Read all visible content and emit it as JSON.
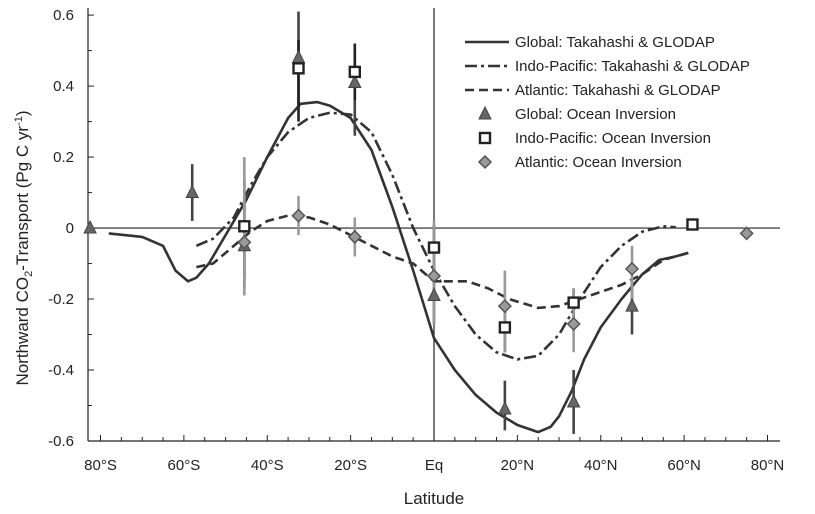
{
  "chart_data": {
    "type": "line",
    "xlabel": "Latitude",
    "ylabel_main": "Northward CO",
    "ylabel_sub": "2",
    "ylabel_rest": "-Transport (Pg C yr",
    "ylabel_sup": "-1",
    "ylabel_end": ")",
    "x_ticks": [
      {
        "value": -80,
        "label": "80°S"
      },
      {
        "value": -60,
        "label": "60°S"
      },
      {
        "value": -40,
        "label": "40°S"
      },
      {
        "value": -20,
        "label": "20°S"
      },
      {
        "value": 0,
        "label": "Eq"
      },
      {
        "value": 20,
        "label": "20°N"
      },
      {
        "value": 40,
        "label": "40°N"
      },
      {
        "value": 60,
        "label": "60°N"
      },
      {
        "value": 80,
        "label": "80°N"
      }
    ],
    "y_ticks": [
      {
        "value": 0.6,
        "label": "0.6"
      },
      {
        "value": 0.4,
        "label": "0.4"
      },
      {
        "value": 0.2,
        "label": "0.2"
      },
      {
        "value": 0,
        "label": "0"
      },
      {
        "value": -0.2,
        "label": "-0.2"
      },
      {
        "value": -0.4,
        "label": "-0.4"
      },
      {
        "value": -0.6,
        "label": "-0.6"
      }
    ],
    "xlim": [
      -83,
      83
    ],
    "ylim": [
      -0.6,
      0.62
    ],
    "grid": false,
    "legend_position": "top-right",
    "lines": [
      {
        "name": "Global: Takahashi & GLODAP",
        "style": "solid",
        "points": [
          [
            -78,
            -0.015
          ],
          [
            -70,
            -0.025
          ],
          [
            -65,
            -0.05
          ],
          [
            -62,
            -0.12
          ],
          [
            -59,
            -0.15
          ],
          [
            -57,
            -0.14
          ],
          [
            -54,
            -0.1
          ],
          [
            -50,
            -0.02
          ],
          [
            -45,
            0.08
          ],
          [
            -40,
            0.2
          ],
          [
            -35,
            0.31
          ],
          [
            -32,
            0.35
          ],
          [
            -28,
            0.355
          ],
          [
            -25,
            0.345
          ],
          [
            -20,
            0.31
          ],
          [
            -15,
            0.22
          ],
          [
            -10,
            0.06
          ],
          [
            -5,
            -0.12
          ],
          [
            0,
            -0.31
          ],
          [
            5,
            -0.4
          ],
          [
            10,
            -0.47
          ],
          [
            15,
            -0.52
          ],
          [
            20,
            -0.555
          ],
          [
            25,
            -0.575
          ],
          [
            28,
            -0.56
          ],
          [
            30,
            -0.53
          ],
          [
            33,
            -0.46
          ],
          [
            36,
            -0.37
          ],
          [
            40,
            -0.28
          ],
          [
            45,
            -0.2
          ],
          [
            50,
            -0.13
          ],
          [
            54,
            -0.09
          ],
          [
            58,
            -0.08
          ],
          [
            61,
            -0.07
          ]
        ]
      },
      {
        "name": "Indo-Pacific: Takahashi & GLODAP",
        "style": "dashdot",
        "points": [
          [
            -57,
            -0.05
          ],
          [
            -53,
            -0.03
          ],
          [
            -48,
            0.03
          ],
          [
            -44,
            0.12
          ],
          [
            -40,
            0.2
          ],
          [
            -35,
            0.27
          ],
          [
            -30,
            0.31
          ],
          [
            -25,
            0.325
          ],
          [
            -20,
            0.32
          ],
          [
            -15,
            0.27
          ],
          [
            -10,
            0.15
          ],
          [
            -5,
            0.0
          ],
          [
            0,
            -0.12
          ],
          [
            5,
            -0.22
          ],
          [
            10,
            -0.3
          ],
          [
            15,
            -0.35
          ],
          [
            20,
            -0.37
          ],
          [
            25,
            -0.36
          ],
          [
            30,
            -0.3
          ],
          [
            35,
            -0.2
          ],
          [
            40,
            -0.11
          ],
          [
            45,
            -0.05
          ],
          [
            50,
            -0.01
          ],
          [
            55,
            0.005
          ],
          [
            58,
            0.002
          ]
        ]
      },
      {
        "name": "Atlantic: Takahashi & GLODAP",
        "style": "dashed",
        "points": [
          [
            -57,
            -0.11
          ],
          [
            -53,
            -0.1
          ],
          [
            -48,
            -0.05
          ],
          [
            -44,
            -0.01
          ],
          [
            -40,
            0.02
          ],
          [
            -35,
            0.035
          ],
          [
            -30,
            0.03
          ],
          [
            -25,
            0.01
          ],
          [
            -20,
            -0.02
          ],
          [
            -15,
            -0.05
          ],
          [
            -10,
            -0.08
          ],
          [
            -5,
            -0.1
          ],
          [
            -2,
            -0.13
          ],
          [
            0,
            -0.15
          ],
          [
            3,
            -0.15
          ],
          [
            8,
            -0.15
          ],
          [
            13,
            -0.17
          ],
          [
            18,
            -0.2
          ],
          [
            25,
            -0.225
          ],
          [
            30,
            -0.22
          ],
          [
            35,
            -0.2
          ],
          [
            40,
            -0.18
          ],
          [
            45,
            -0.16
          ],
          [
            50,
            -0.13
          ],
          [
            55,
            -0.09
          ],
          [
            58,
            -0.08
          ],
          [
            61,
            -0.07
          ]
        ]
      }
    ],
    "markers": [
      {
        "name": "Global: Ocean Inversion",
        "shape": "triangle",
        "points": [
          {
            "x": -82.5,
            "y": 0.0,
            "low": null,
            "high": null
          },
          {
            "x": -58,
            "y": 0.1,
            "low": 0.02,
            "high": 0.18
          },
          {
            "x": -45.5,
            "y": -0.05,
            "low": -0.17,
            "high": 0.07
          },
          {
            "x": -32.5,
            "y": 0.48,
            "low": 0.34,
            "high": 0.61
          },
          {
            "x": -19,
            "y": 0.41,
            "low": 0.26,
            "high": 0.5
          },
          {
            "x": 0,
            "y": -0.19,
            "low": -0.27,
            "high": -0.11
          },
          {
            "x": 17,
            "y": -0.51,
            "low": -0.57,
            "high": -0.43
          },
          {
            "x": 33.5,
            "y": -0.49,
            "low": -0.58,
            "high": -0.4
          },
          {
            "x": 47.5,
            "y": -0.22,
            "low": -0.3,
            "high": -0.14
          }
        ]
      },
      {
        "name": "Indo-Pacific: Ocean Inversion",
        "shape": "square",
        "points": [
          {
            "x": -45.5,
            "y": 0.005,
            "low": -0.14,
            "high": 0.14
          },
          {
            "x": -32.5,
            "y": 0.45,
            "low": 0.3,
            "high": 0.53
          },
          {
            "x": -19,
            "y": 0.44,
            "low": 0.36,
            "high": 0.52
          },
          {
            "x": 0,
            "y": -0.055,
            "low": -0.12,
            "high": 0.01
          },
          {
            "x": 17,
            "y": -0.28,
            "low": -0.35,
            "high": -0.21
          },
          {
            "x": 33.5,
            "y": -0.21,
            "low": -0.25,
            "high": -0.17
          },
          {
            "x": 62,
            "y": 0.01,
            "low": null,
            "high": null
          }
        ]
      },
      {
        "name": "Atlantic: Ocean Inversion",
        "shape": "diamond",
        "points": [
          {
            "x": -45.5,
            "y": -0.04,
            "low": -0.19,
            "high": 0.2
          },
          {
            "x": -32.5,
            "y": 0.035,
            "low": -0.02,
            "high": 0.09
          },
          {
            "x": -19,
            "y": -0.025,
            "low": -0.08,
            "high": 0.03
          },
          {
            "x": 0,
            "y": -0.135,
            "low": -0.27,
            "high": 0.02
          },
          {
            "x": 17,
            "y": -0.22,
            "low": -0.35,
            "high": -0.12
          },
          {
            "x": 33.5,
            "y": -0.27,
            "low": -0.35,
            "high": -0.17
          },
          {
            "x": 47.5,
            "y": -0.115,
            "low": -0.2,
            "high": -0.05
          },
          {
            "x": 75,
            "y": -0.015,
            "low": null,
            "high": null
          }
        ]
      }
    ]
  }
}
